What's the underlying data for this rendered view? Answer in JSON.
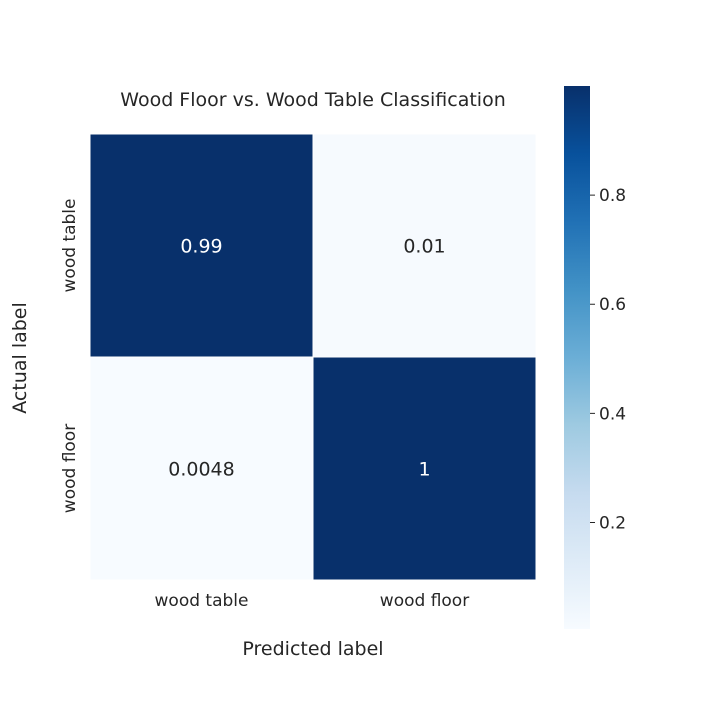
{
  "chart_data": {
    "type": "heatmap",
    "title": "Wood Floor vs. Wood Table Classification",
    "xlabel": "Predicted label",
    "ylabel": "Actual label",
    "x_categories": [
      "wood table",
      "wood floor"
    ],
    "y_categories": [
      "wood table",
      "wood floor"
    ],
    "values": [
      [
        0.99,
        0.01
      ],
      [
        0.0048,
        1
      ]
    ],
    "annotations": [
      [
        "0.99",
        "0.01"
      ],
      [
        "0.0048",
        "1"
      ]
    ],
    "colormap": "Blues",
    "vmin": 0.0048,
    "vmax": 1,
    "colorbar_ticks": [
      "0.2",
      "0.4",
      "0.6",
      "0.8"
    ],
    "colorbar_tick_values": [
      0.2,
      0.4,
      0.6,
      0.8
    ]
  },
  "colors": {
    "low": "#f7fbff",
    "high": "#08306b",
    "text": "#262626",
    "annot_light": "#ffffff",
    "annot_dark": "#262626"
  }
}
